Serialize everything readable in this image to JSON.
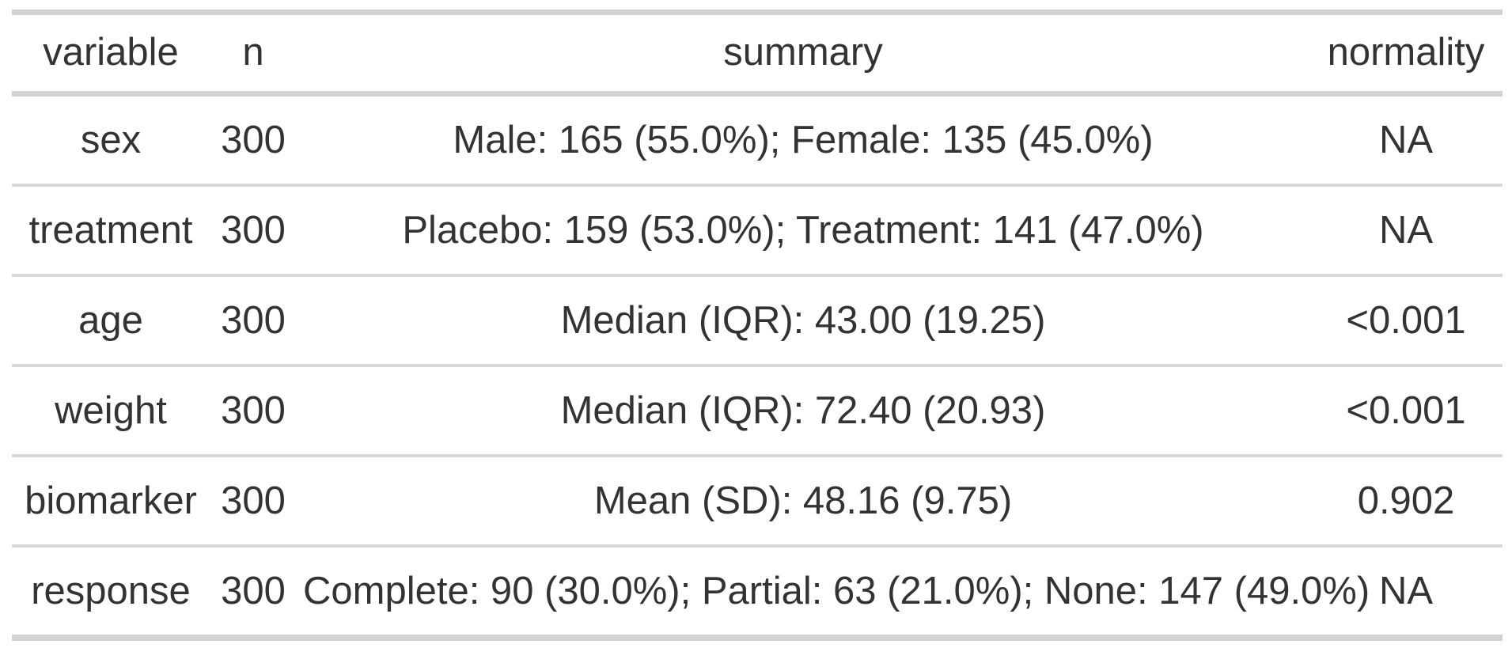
{
  "chart_data": {
    "type": "table",
    "columns": [
      "variable",
      "n",
      "summary",
      "normality"
    ],
    "rows": [
      [
        "sex",
        "300",
        "Male: 165 (55.0%); Female: 135 (45.0%)",
        "NA"
      ],
      [
        "treatment",
        "300",
        "Placebo: 159 (53.0%); Treatment: 141 (47.0%)",
        "NA"
      ],
      [
        "age",
        "300",
        "Median (IQR): 43.00 (19.25)",
        "<0.001"
      ],
      [
        "weight",
        "300",
        "Median (IQR): 72.40 (20.93)",
        "<0.001"
      ],
      [
        "biomarker",
        "300",
        "Mean (SD): 48.16 (9.75)",
        "0.902"
      ],
      [
        "response",
        "300",
        "Complete: 90 (30.0%); Partial: 63 (21.0%); None: 147 (49.0%)",
        "NA"
      ]
    ],
    "layout": {
      "alignment": "center",
      "grid": "horizontal-rules-only",
      "legend": "none"
    },
    "colors": {
      "border_thick": "#d2d2d2",
      "border_thin": "#d9d9d9",
      "text": "#333333",
      "background": "#ffffff"
    }
  }
}
